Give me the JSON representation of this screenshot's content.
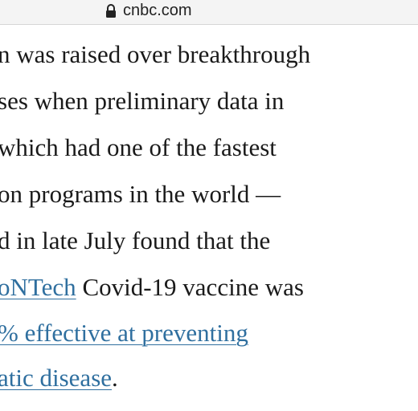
{
  "browser": {
    "url": "cnbc.com"
  },
  "article": {
    "lines": [
      "n was raised over breakthrough",
      "ses when preliminary data in",
      "which had one of the fastest",
      "on programs in the world —",
      "d in late July found that the",
      [
        "oNTech",
        " Covid-19 vaccine was"
      ],
      [
        "% effective at preventing"
      ],
      [
        "atic disease",
        "."
      ]
    ]
  }
}
